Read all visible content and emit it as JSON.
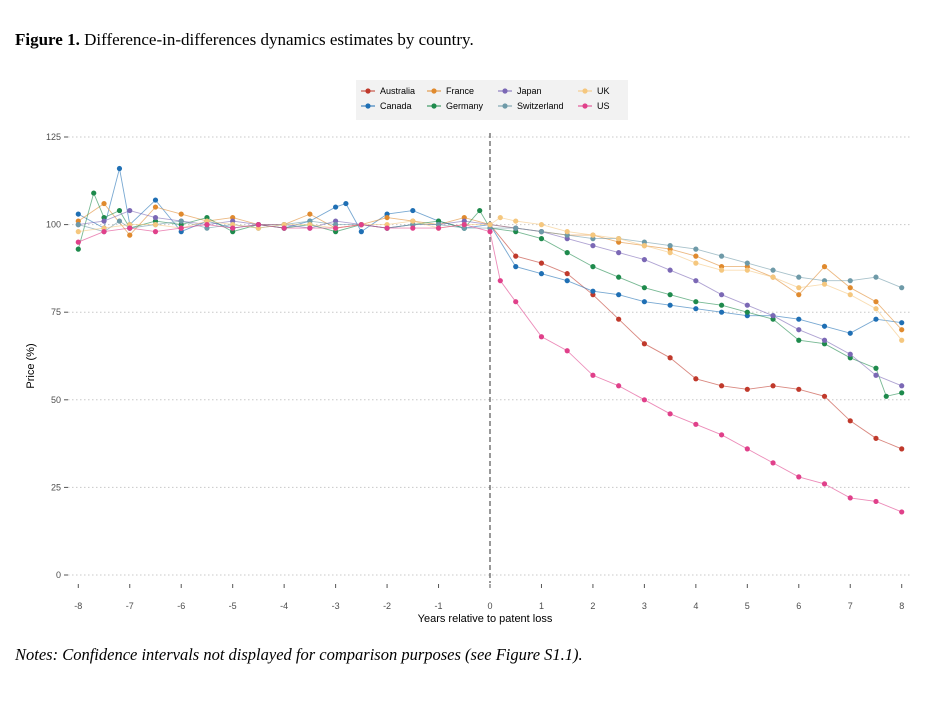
{
  "caption": {
    "label": "Figure 1.",
    "text": " Difference-in-differences dynamics estimates by country."
  },
  "notes": "Notes: Confidence intervals not displayed for comparison purposes (see Figure S1.1).",
  "chart_data": {
    "type": "line",
    "title": "",
    "xlabel": "Years relative to patent loss",
    "ylabel": "Price (%)",
    "xlim": [
      -8.2,
      8.2
    ],
    "ylim": [
      0,
      125
    ],
    "xticks": [
      -8,
      -7,
      -6,
      -5,
      -4,
      -3,
      -2,
      -1,
      0,
      1,
      2,
      3,
      4,
      5,
      6,
      7,
      8
    ],
    "yticks": [
      0,
      25,
      50,
      75,
      100,
      125
    ],
    "grid": "horizontal-dotted",
    "legend": "top",
    "vline": {
      "x": 0,
      "style": "dashed"
    },
    "series": [
      {
        "name": "Australia",
        "color": "#c0392b",
        "x": [
          0,
          0.5,
          1,
          1.5,
          2,
          2.5,
          3,
          3.5,
          4,
          4.5,
          5,
          5.5,
          6,
          6.5,
          7,
          7.5,
          8
        ],
        "values": [
          100,
          91,
          89,
          86,
          80,
          73,
          66,
          62,
          56,
          54,
          53,
          54,
          53,
          51,
          44,
          39,
          36
        ]
      },
      {
        "name": "Canada",
        "color": "#1f6fb4",
        "x": [
          -8,
          -7.5,
          -7.2,
          -7,
          -6.5,
          -6,
          -5.5,
          -5,
          -4.5,
          -4,
          -3.5,
          -3,
          -2.8,
          -2.5,
          -2,
          -1.5,
          -1,
          -0.5,
          0,
          0.5,
          1,
          1.5,
          2,
          2.5,
          3,
          3.5,
          4,
          4.5,
          5,
          5.5,
          6,
          6.5,
          7,
          7.5,
          8
        ],
        "values": [
          103,
          99,
          116,
          100,
          107,
          98,
          101,
          99,
          100,
          99,
          101,
          105,
          106,
          98,
          103,
          104,
          101,
          99,
          100,
          88,
          86,
          84,
          81,
          80,
          78,
          77,
          76,
          75,
          74,
          74,
          73,
          71,
          69,
          73,
          72
        ]
      },
      {
        "name": "France",
        "color": "#e08a2e",
        "x": [
          -8,
          -7.5,
          -7,
          -6.5,
          -6,
          -5.5,
          -5,
          -4.5,
          -4,
          -3.5,
          -3,
          -2.5,
          -2,
          -1.5,
          -1,
          -0.5,
          0,
          0.5,
          1,
          1.5,
          2,
          2.5,
          3,
          3.5,
          4,
          4.5,
          5,
          5.5,
          6,
          6.5,
          7,
          7.5,
          8
        ],
        "values": [
          101,
          106,
          97,
          105,
          103,
          101,
          102,
          100,
          100,
          103,
          99,
          100,
          102,
          101,
          100,
          102,
          100,
          99,
          98,
          97,
          97,
          95,
          94,
          93,
          91,
          88,
          88,
          85,
          80,
          88,
          82,
          78,
          70
        ]
      },
      {
        "name": "Germany",
        "color": "#1e8a4c",
        "x": [
          -8,
          -7.7,
          -7.5,
          -7.2,
          -7,
          -6.5,
          -6,
          -5.5,
          -5,
          -4.5,
          -4,
          -3.5,
          -3,
          -2.5,
          -2,
          -1.5,
          -1,
          -0.5,
          -0.2,
          0,
          0.5,
          1,
          1.5,
          2,
          2.5,
          3,
          3.5,
          4,
          4.5,
          5,
          5.5,
          6,
          6.5,
          7,
          7.5,
          7.7,
          8
        ],
        "values": [
          93,
          109,
          102,
          104,
          99,
          101,
          100,
          102,
          98,
          100,
          99,
          100,
          98,
          100,
          99,
          100,
          101,
          99,
          104,
          99,
          98,
          96,
          92,
          88,
          85,
          82,
          80,
          78,
          77,
          75,
          73,
          67,
          66,
          62,
          59,
          51,
          52
        ]
      },
      {
        "name": "Japan",
        "color": "#7b68b5",
        "x": [
          -8,
          -7.5,
          -7,
          -6.5,
          -6,
          -5.5,
          -5,
          -4.5,
          -4,
          -3.5,
          -3,
          -2.5,
          -2,
          -1.5,
          -1,
          -0.5,
          0,
          0.5,
          1,
          1.5,
          2,
          2.5,
          3,
          3.5,
          4,
          4.5,
          5,
          5.5,
          6,
          6.5,
          7,
          7.5,
          8
        ],
        "values": [
          100,
          101,
          104,
          102,
          101,
          100,
          101,
          100,
          100,
          99,
          101,
          100,
          99,
          100,
          100,
          101,
          100,
          99,
          98,
          96,
          94,
          92,
          90,
          87,
          84,
          80,
          77,
          74,
          70,
          67,
          63,
          57,
          54
        ]
      },
      {
        "name": "Switzerland",
        "color": "#6e9aa8",
        "x": [
          -8,
          -7.5,
          -7.2,
          -7,
          -6.5,
          -6,
          -5.5,
          -5,
          -4.5,
          -4,
          -3.5,
          -3,
          -2.5,
          -2,
          -1.5,
          -1,
          -0.5,
          0,
          0.5,
          1,
          1.5,
          2,
          2.5,
          3,
          3.5,
          4,
          4.5,
          5,
          5.5,
          6,
          6.5,
          7,
          7.5,
          8
        ],
        "values": [
          100,
          98,
          101,
          99,
          100,
          101,
          99,
          100,
          99,
          100,
          101,
          100,
          100,
          99,
          100,
          100,
          99,
          99,
          99,
          98,
          97,
          96,
          96,
          95,
          94,
          93,
          91,
          89,
          87,
          85,
          84,
          84,
          85,
          82
        ]
      },
      {
        "name": "UK",
        "color": "#f5c77e",
        "x": [
          -8,
          -7.5,
          -7,
          -6.5,
          -6,
          -5.5,
          -5,
          -4.5,
          -4,
          -3.5,
          -3,
          -2.5,
          -2,
          -1.5,
          -1,
          -0.5,
          0,
          0.2,
          0.5,
          1,
          1.5,
          2,
          2.5,
          3,
          3.5,
          4,
          4.5,
          5,
          5.5,
          6,
          6.5,
          7,
          7.5,
          8
        ],
        "values": [
          98,
          99,
          100,
          100,
          99,
          101,
          100,
          99,
          100,
          100,
          99,
          100,
          100,
          101,
          99,
          100,
          100,
          102,
          101,
          100,
          98,
          97,
          96,
          94,
          92,
          89,
          87,
          87,
          85,
          82,
          83,
          80,
          76,
          67
        ]
      },
      {
        "name": "US",
        "color": "#e0408a",
        "x": [
          -8,
          -7.5,
          -7,
          -6.5,
          -6,
          -5.5,
          -5,
          -4.5,
          -4,
          -3.5,
          -3,
          -2.5,
          -2,
          -1.5,
          -1,
          -0.5,
          0,
          0.2,
          0.5,
          1,
          1.5,
          2,
          2.5,
          3,
          3.5,
          4,
          4.5,
          5,
          5.5,
          6,
          6.5,
          7,
          7.5,
          8
        ],
        "values": [
          95,
          98,
          99,
          98,
          99,
          100,
          99,
          100,
          99,
          99,
          99,
          100,
          99,
          99,
          99,
          100,
          98,
          84,
          78,
          68,
          64,
          57,
          54,
          50,
          46,
          43,
          40,
          36,
          32,
          28,
          26,
          22,
          21,
          18
        ]
      }
    ]
  }
}
